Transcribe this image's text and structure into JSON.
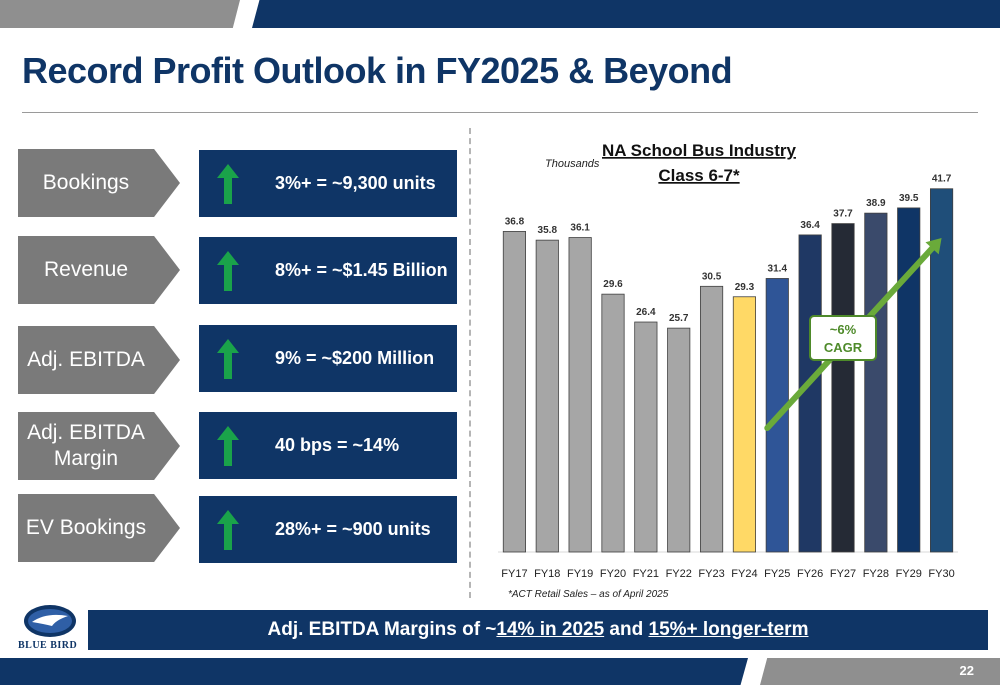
{
  "title": "Record Profit Outlook in FY2025 & Beyond",
  "metrics": [
    {
      "label": "Bookings",
      "value": "3%+ = ~9,300 units"
    },
    {
      "label": "Revenue",
      "value": "8%+ = ~$1.45 Billion"
    },
    {
      "label": "Adj. EBITDA",
      "value": "9% = ~$200 Million"
    },
    {
      "label": "Adj. EBITDA Margin",
      "value": "40 bps = ~14%"
    },
    {
      "label": "EV Bookings",
      "value": "28%+ = ~900 units"
    }
  ],
  "colors": {
    "navy": "#0f3566",
    "gray": "#7a7a7a",
    "green_arrow": "#1aa34a",
    "cagr_arrow": "#6aaa3a"
  },
  "chart_data": {
    "type": "bar",
    "title_line1": "NA School Bus Industry",
    "title_line2": "Class 6-7*",
    "unit_label": "Thousands",
    "categories": [
      "FY17",
      "FY18",
      "FY19",
      "FY20",
      "FY21",
      "FY22",
      "FY23",
      "FY24",
      "FY25",
      "FY26",
      "FY27",
      "FY28",
      "FY29",
      "FY30"
    ],
    "values": [
      36.8,
      35.8,
      36.1,
      29.6,
      26.4,
      25.7,
      30.5,
      29.3,
      31.4,
      36.4,
      37.7,
      38.9,
      39.5,
      41.7
    ],
    "bar_colors": [
      "#a6a6a6",
      "#a6a6a6",
      "#a6a6a6",
      "#a6a6a6",
      "#a6a6a6",
      "#a6a6a6",
      "#a6a6a6",
      "#ffd966",
      "#2f5597",
      "#1f3864",
      "#252a35",
      "#3a4a6b",
      "#0f3566",
      "#1f4e79"
    ],
    "ylim": [
      0,
      45
    ],
    "annotation": {
      "line1": "~6%",
      "line2": "CAGR",
      "from_category": "FY25",
      "to_category": "FY30"
    },
    "footnote": "*ACT Retail Sales – as of April 2025"
  },
  "footer": {
    "prefix": "Adj. EBITDA Margins of ~",
    "em1": "14% in 2025",
    "mid": " and ",
    "em2": "15%+ longer-term"
  },
  "logo_text": "BLUE BIRD",
  "page_number": "22"
}
